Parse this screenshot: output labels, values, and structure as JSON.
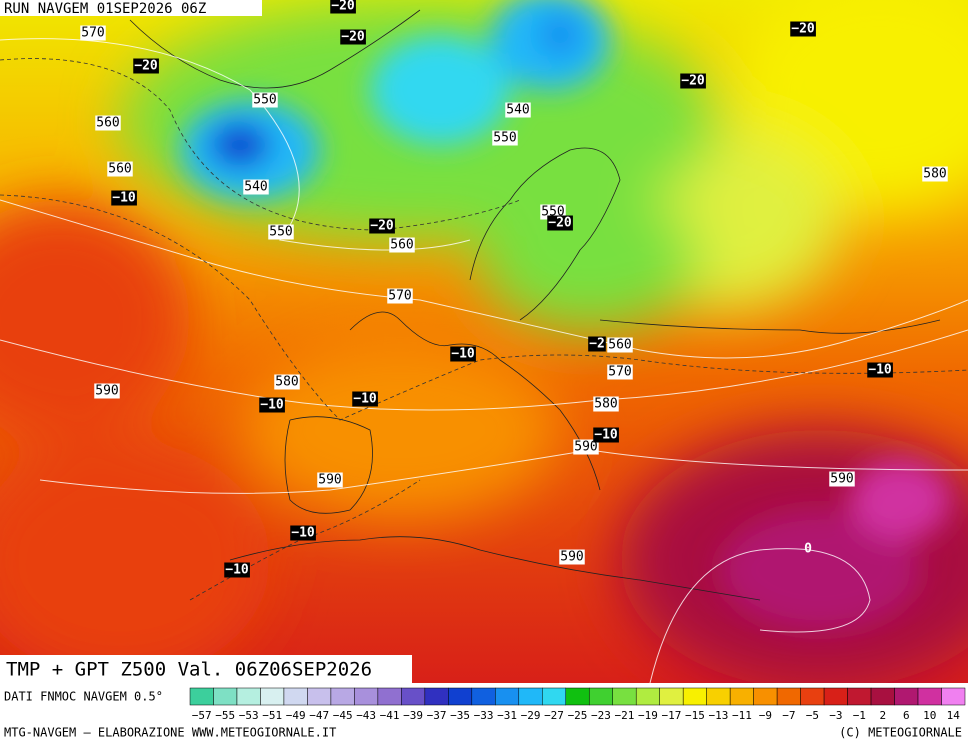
{
  "header": {
    "run": "RUN NAVGEM 01SEP2026 06Z"
  },
  "title": "TMP + GPT Z500 Val. 06Z06SEP2026",
  "geopotential_labels": [
    "570",
    "550",
    "560",
    "560",
    "540",
    "550",
    "540",
    "550",
    "550",
    "560",
    "570",
    "580",
    "590",
    "590",
    "560",
    "570",
    "580",
    "590",
    "590",
    "590",
    "580"
  ],
  "temperature_labels": [
    "−20",
    "−20",
    "−20",
    "−20",
    "−20",
    "−10",
    "−20",
    "−20",
    "−2",
    "−10",
    "−10",
    "−10",
    "−10",
    "−10",
    "−10",
    "−10"
  ],
  "isotherm_zero_label": "0",
  "legend": {
    "source": "DATI FNMOC NAVGEM 0.5°",
    "labels": [
      "−57",
      "−55",
      "−53",
      "−51",
      "−49",
      "−47",
      "−45",
      "−43",
      "−41",
      "−39",
      "−37",
      "−35",
      "−33",
      "−31",
      "−29",
      "−27",
      "−25",
      "−23",
      "−21",
      "−19",
      "−17",
      "−15",
      "−13",
      "−11",
      "−9",
      "−7",
      "−5",
      "−3",
      "−1",
      "2",
      "6",
      "10",
      "14"
    ],
    "colors": [
      "#3ccf9c",
      "#7ee0c4",
      "#b5efe0",
      "#d8f0f0",
      "#d0d8f0",
      "#c8c0ec",
      "#b8a8e4",
      "#a890dc",
      "#9070d0",
      "#6850c8",
      "#3030c0",
      "#1040d0",
      "#1060e0",
      "#1890f0",
      "#20b8f8",
      "#30d8f0",
      "#10c010",
      "#40d030",
      "#78e040",
      "#b0ec40",
      "#e0f040",
      "#f8f000",
      "#f8d000",
      "#f8b000",
      "#f89000",
      "#f06800",
      "#e84010",
      "#d82018",
      "#c01830",
      "#a81040",
      "#b01870",
      "#d030a0",
      "#f080f0"
    ]
  },
  "footer": {
    "credit": "MTG-NAVGEM – ELABORAZIONE WWW.METEOGIORNALE.IT",
    "copyright": "(C) METEOGIORNALE"
  }
}
